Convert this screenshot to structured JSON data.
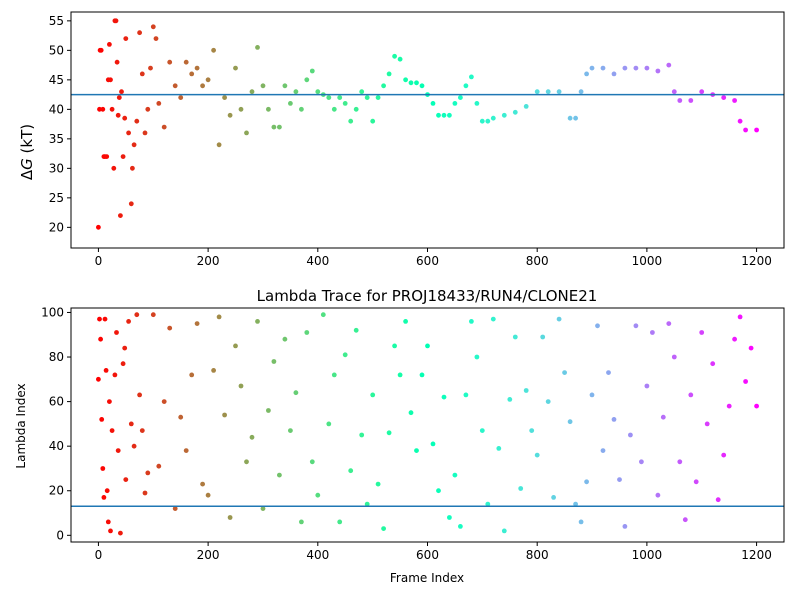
{
  "chart_data": [
    {
      "type": "scatter",
      "title": "",
      "xlabel": "",
      "ylabel": "ΔG (kT)",
      "ylabel_parts": {
        "delta": "Δ",
        "var": "G",
        "unit": " (kT)"
      },
      "xlim": [
        -50,
        1250
      ],
      "ylim": [
        16.5,
        56.5
      ],
      "xticks": [
        0,
        200,
        400,
        600,
        800,
        1000,
        1200
      ],
      "yticks": [
        20,
        25,
        30,
        35,
        40,
        45,
        50,
        55
      ],
      "hline": 42.5,
      "hline_color": "#1f77b4",
      "colormap": "rainbow (red at frame 0 to violet at frame 1200)",
      "points_sample": [
        [
          0,
          20
        ],
        [
          2,
          40
        ],
        [
          3,
          50
        ],
        [
          5,
          50
        ],
        [
          8,
          40
        ],
        [
          10,
          32
        ],
        [
          12,
          32
        ],
        [
          15,
          32
        ],
        [
          18,
          45
        ],
        [
          20,
          51
        ],
        [
          22,
          45
        ],
        [
          25,
          40
        ],
        [
          28,
          30
        ],
        [
          30,
          55
        ],
        [
          32,
          55
        ],
        [
          34,
          48
        ],
        [
          36,
          39
        ],
        [
          38,
          42
        ],
        [
          40,
          22
        ],
        [
          42,
          43
        ],
        [
          45,
          32
        ],
        [
          48,
          38.5
        ],
        [
          50,
          52
        ],
        [
          55,
          36
        ],
        [
          60,
          24
        ],
        [
          62,
          30
        ],
        [
          65,
          34
        ],
        [
          70,
          38
        ],
        [
          75,
          53
        ],
        [
          80,
          46
        ],
        [
          85,
          36
        ],
        [
          90,
          40
        ],
        [
          95,
          47
        ],
        [
          100,
          54
        ],
        [
          105,
          52
        ],
        [
          110,
          41
        ],
        [
          120,
          37
        ],
        [
          130,
          48
        ],
        [
          140,
          44
        ],
        [
          150,
          42
        ],
        [
          160,
          48
        ],
        [
          170,
          46
        ],
        [
          180,
          47
        ],
        [
          190,
          44
        ],
        [
          200,
          45
        ],
        [
          210,
          50
        ],
        [
          220,
          34
        ],
        [
          230,
          42
        ],
        [
          240,
          39
        ],
        [
          250,
          47
        ],
        [
          260,
          40
        ],
        [
          270,
          36
        ],
        [
          280,
          43
        ],
        [
          290,
          50.5
        ],
        [
          300,
          44
        ],
        [
          310,
          40
        ],
        [
          320,
          37
        ],
        [
          330,
          37
        ],
        [
          340,
          44
        ],
        [
          350,
          41
        ],
        [
          360,
          43
        ],
        [
          370,
          40
        ],
        [
          380,
          45
        ],
        [
          390,
          46.5
        ],
        [
          400,
          43
        ],
        [
          410,
          42.5
        ],
        [
          420,
          42
        ],
        [
          430,
          40
        ],
        [
          440,
          42
        ],
        [
          450,
          41
        ],
        [
          460,
          38
        ],
        [
          470,
          40
        ],
        [
          480,
          43
        ],
        [
          490,
          42
        ],
        [
          500,
          38
        ],
        [
          510,
          42
        ],
        [
          520,
          44
        ],
        [
          530,
          46
        ],
        [
          540,
          49
        ],
        [
          550,
          48.5
        ],
        [
          560,
          45
        ],
        [
          570,
          44.5
        ],
        [
          580,
          44.5
        ],
        [
          590,
          44
        ],
        [
          600,
          42.5
        ],
        [
          610,
          41
        ],
        [
          620,
          39
        ],
        [
          630,
          39
        ],
        [
          640,
          39
        ],
        [
          650,
          41
        ],
        [
          660,
          42
        ],
        [
          670,
          44
        ],
        [
          680,
          45.5
        ],
        [
          690,
          41
        ],
        [
          700,
          38
        ],
        [
          710,
          38
        ],
        [
          720,
          38.5
        ],
        [
          740,
          39
        ],
        [
          760,
          39.5
        ],
        [
          780,
          40.5
        ],
        [
          800,
          43
        ],
        [
          820,
          43
        ],
        [
          840,
          43
        ],
        [
          860,
          38.5
        ],
        [
          870,
          38.5
        ],
        [
          880,
          43
        ],
        [
          890,
          46
        ],
        [
          900,
          47
        ],
        [
          920,
          47
        ],
        [
          940,
          46
        ],
        [
          960,
          47
        ],
        [
          980,
          47
        ],
        [
          1000,
          47
        ],
        [
          1020,
          46.5
        ],
        [
          1040,
          47.5
        ],
        [
          1050,
          43
        ],
        [
          1060,
          41.5
        ],
        [
          1080,
          41.5
        ],
        [
          1100,
          43
        ],
        [
          1120,
          42.5
        ],
        [
          1140,
          42
        ],
        [
          1160,
          41.5
        ],
        [
          1170,
          38
        ],
        [
          1180,
          36.5
        ],
        [
          1200,
          36.5
        ]
      ]
    },
    {
      "type": "scatter",
      "title": "Lambda Trace for PROJ18433/RUN4/CLONE21",
      "xlabel": "Frame Index",
      "ylabel": "Lambda Index",
      "xlim": [
        -50,
        1250
      ],
      "ylim": [
        -3,
        102
      ],
      "xticks": [
        0,
        200,
        400,
        600,
        800,
        1000,
        1200
      ],
      "yticks": [
        0,
        20,
        40,
        60,
        80,
        100
      ],
      "hline": 13,
      "hline_color": "#1f77b4",
      "colormap": "rainbow (red at frame 0 to violet at frame 1200)",
      "points_sample": [
        [
          0,
          70
        ],
        [
          2,
          97
        ],
        [
          4,
          88
        ],
        [
          6,
          52
        ],
        [
          8,
          30
        ],
        [
          10,
          17
        ],
        [
          12,
          97
        ],
        [
          14,
          74
        ],
        [
          16,
          20
        ],
        [
          18,
          6
        ],
        [
          20,
          60
        ],
        [
          22,
          2
        ],
        [
          25,
          47
        ],
        [
          30,
          72
        ],
        [
          33,
          91
        ],
        [
          36,
          38
        ],
        [
          40,
          1
        ],
        [
          45,
          77
        ],
        [
          48,
          84
        ],
        [
          50,
          25
        ],
        [
          55,
          96
        ],
        [
          60,
          50
        ],
        [
          65,
          40
        ],
        [
          70,
          99
        ],
        [
          75,
          63
        ],
        [
          80,
          47
        ],
        [
          85,
          19
        ],
        [
          90,
          28
        ],
        [
          100,
          99
        ],
        [
          110,
          31
        ],
        [
          120,
          60
        ],
        [
          130,
          93
        ],
        [
          140,
          12
        ],
        [
          150,
          53
        ],
        [
          160,
          38
        ],
        [
          170,
          72
        ],
        [
          180,
          95
        ],
        [
          190,
          23
        ],
        [
          200,
          18
        ],
        [
          210,
          74
        ],
        [
          220,
          98
        ],
        [
          230,
          54
        ],
        [
          240,
          8
        ],
        [
          250,
          85
        ],
        [
          260,
          67
        ],
        [
          270,
          33
        ],
        [
          280,
          44
        ],
        [
          290,
          96
        ],
        [
          300,
          12
        ],
        [
          310,
          56
        ],
        [
          320,
          78
        ],
        [
          330,
          27
        ],
        [
          340,
          88
        ],
        [
          350,
          47
        ],
        [
          360,
          64
        ],
        [
          370,
          6
        ],
        [
          380,
          91
        ],
        [
          390,
          33
        ],
        [
          400,
          18
        ],
        [
          410,
          99
        ],
        [
          420,
          50
        ],
        [
          430,
          72
        ],
        [
          440,
          6
        ],
        [
          450,
          81
        ],
        [
          460,
          29
        ],
        [
          470,
          92
        ],
        [
          480,
          45
        ],
        [
          490,
          14
        ],
        [
          500,
          63
        ],
        [
          510,
          23
        ],
        [
          520,
          3
        ],
        [
          530,
          46
        ],
        [
          540,
          85
        ],
        [
          550,
          72
        ],
        [
          560,
          96
        ],
        [
          570,
          55
        ],
        [
          580,
          38
        ],
        [
          590,
          72
        ],
        [
          600,
          85
        ],
        [
          610,
          41
        ],
        [
          620,
          20
        ],
        [
          630,
          62
        ],
        [
          640,
          8
        ],
        [
          650,
          27
        ],
        [
          660,
          4
        ],
        [
          670,
          63
        ],
        [
          680,
          96
        ],
        [
          690,
          80
        ],
        [
          700,
          47
        ],
        [
          710,
          14
        ],
        [
          720,
          97
        ],
        [
          730,
          39
        ],
        [
          740,
          2
        ],
        [
          750,
          61
        ],
        [
          760,
          89
        ],
        [
          770,
          21
        ],
        [
          780,
          65
        ],
        [
          790,
          47
        ],
        [
          800,
          36
        ],
        [
          810,
          89
        ],
        [
          820,
          60
        ],
        [
          830,
          17
        ],
        [
          840,
          97
        ],
        [
          850,
          73
        ],
        [
          860,
          51
        ],
        [
          870,
          14
        ],
        [
          880,
          6
        ],
        [
          890,
          24
        ],
        [
          900,
          63
        ],
        [
          910,
          94
        ],
        [
          920,
          38
        ],
        [
          930,
          73
        ],
        [
          940,
          52
        ],
        [
          950,
          25
        ],
        [
          960,
          4
        ],
        [
          970,
          45
        ],
        [
          980,
          94
        ],
        [
          990,
          33
        ],
        [
          1000,
          67
        ],
        [
          1010,
          91
        ],
        [
          1020,
          18
        ],
        [
          1030,
          53
        ],
        [
          1040,
          95
        ],
        [
          1050,
          80
        ],
        [
          1060,
          33
        ],
        [
          1070,
          7
        ],
        [
          1080,
          63
        ],
        [
          1090,
          24
        ],
        [
          1100,
          91
        ],
        [
          1110,
          50
        ],
        [
          1120,
          77
        ],
        [
          1130,
          16
        ],
        [
          1140,
          36
        ],
        [
          1150,
          58
        ],
        [
          1160,
          88
        ],
        [
          1170,
          98
        ],
        [
          1180,
          69
        ],
        [
          1190,
          84
        ],
        [
          1200,
          58
        ]
      ]
    }
  ]
}
